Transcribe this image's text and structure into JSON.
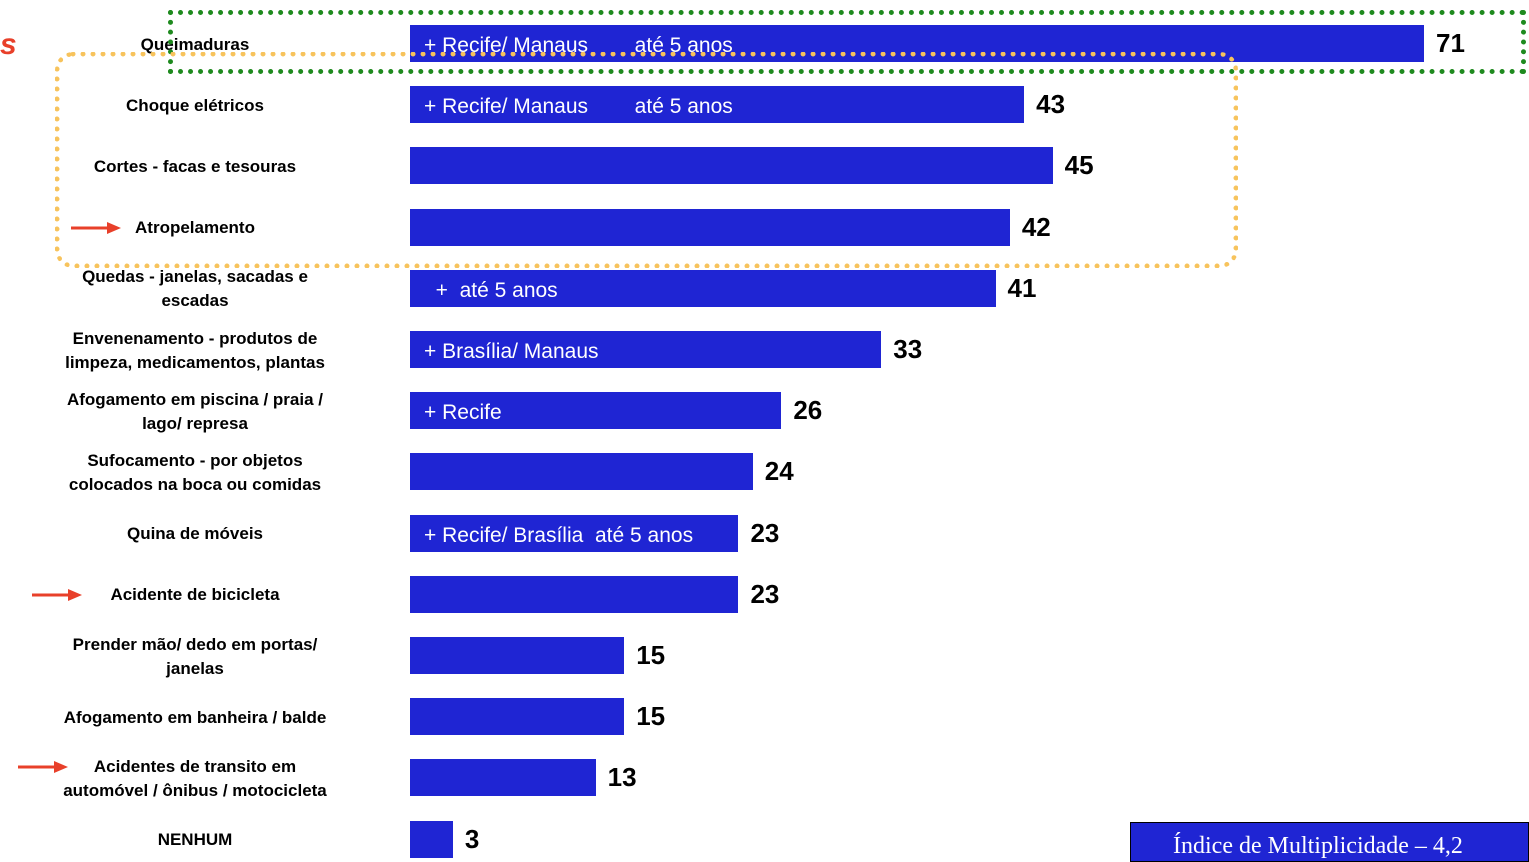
{
  "stray_letter": "s",
  "footer": {
    "index_text": "Índice de Multiplicidade – 4,2"
  },
  "colors": {
    "bar": "#1f25d3",
    "arrow": "#e8402a",
    "green_box": "#1e8a1e",
    "yellow_box": "#f7c35c"
  },
  "chart_data": {
    "type": "bar",
    "orientation": "horizontal",
    "categories": [
      "Queimaduras",
      "Choque elétricos",
      "Cortes - facas e tesouras",
      "Atropelamento",
      "Quedas - janelas, sacadas e\nescadas",
      "Envenenamento - produtos de\nlimpeza, medicamentos, plantas",
      "Afogamento em piscina / praia /\nlago/ represa",
      "Sufocamento - por objetos\ncolocados na boca ou comidas",
      "Quina de móveis",
      "Acidente de bicicleta",
      "Prender mão/ dedo em portas/\njanelas",
      "Afogamento em banheira / balde",
      "Acidentes de transito em\nautomóvel / ônibus / motocicleta",
      "NENHUM"
    ],
    "values": [
      71,
      43,
      45,
      42,
      41,
      33,
      26,
      24,
      23,
      23,
      15,
      15,
      13,
      3
    ],
    "value_labels": [
      "71",
      "43",
      "45",
      "42",
      "41",
      "33",
      "26",
      "24",
      "23",
      "23",
      "15",
      "15",
      "13",
      "3"
    ],
    "bar_annotations": [
      "+ Recife/ Manaus        até 5 anos",
      "+ Recife/ Manaus        até 5 anos",
      "",
      "",
      "  +  até 5 anos",
      "+ Brasília/ Manaus",
      "+ Recife",
      "",
      "+ Recife/ Brasília  até 5 anos",
      "",
      "",
      "",
      "",
      ""
    ],
    "arrow_markers": [
      "Atropelamento",
      "Acidente de bicicleta",
      "Acidentes de transito em\nautomóvel / ônibus / motocicleta"
    ],
    "highlight_groups": [
      {
        "style": "green-dotted",
        "categories": [
          "Queimaduras"
        ]
      },
      {
        "style": "yellow-dotted",
        "categories": [
          "Choque elétricos",
          "Cortes - facas e tesouras",
          "Atropelamento"
        ]
      }
    ],
    "grid": false,
    "legend": "none",
    "xlim": [
      0,
      71
    ]
  }
}
